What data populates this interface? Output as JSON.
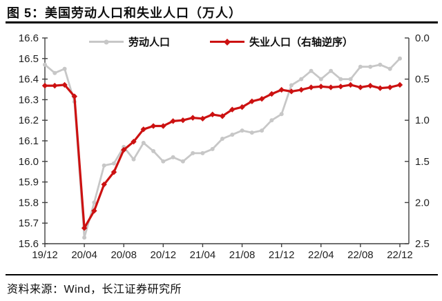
{
  "figure": {
    "title": "图 5：美国劳动人口和失业人口（万人）",
    "source": "资料来源：Wind，长江证券研究所"
  },
  "legend": {
    "labor": "劳动人口",
    "unemployment": "失业人口（右轴逆序）"
  },
  "colors": {
    "labor_series": "#c7c7c7",
    "unemployment_series": "#cc1111",
    "axis": "#3f3f3f",
    "tick_label": "#1f1f1f",
    "rule": "#000000"
  },
  "chart_data": {
    "type": "line",
    "title": "美国劳动人口和失业人口（万人）",
    "x": [
      "19/12",
      "20/01",
      "20/02",
      "20/03",
      "20/04",
      "20/05",
      "20/06",
      "20/07",
      "20/08",
      "20/09",
      "20/10",
      "20/11",
      "20/12",
      "21/01",
      "21/02",
      "21/03",
      "21/04",
      "21/05",
      "21/06",
      "21/07",
      "21/08",
      "21/09",
      "21/10",
      "21/11",
      "21/12",
      "22/01",
      "22/02",
      "22/03",
      "22/04",
      "22/05",
      "22/06",
      "22/07",
      "22/08",
      "22/09",
      "22/10",
      "22/11",
      "22/12"
    ],
    "x_tick_labels": [
      "19/12",
      "20/04",
      "20/08",
      "20/12",
      "21/04",
      "21/08",
      "21/12",
      "22/04",
      "22/08",
      "22/12"
    ],
    "x_tick_step": 4,
    "series": [
      {
        "name": "劳动人口",
        "axis": "left",
        "color": "#c7c7c7",
        "marker": "circle",
        "values": [
          16.47,
          16.43,
          16.45,
          16.29,
          15.63,
          15.8,
          15.98,
          15.99,
          16.07,
          16.01,
          16.09,
          16.05,
          16.0,
          16.02,
          16.0,
          16.04,
          16.04,
          16.06,
          16.11,
          16.13,
          16.15,
          16.14,
          16.15,
          16.2,
          16.23,
          16.37,
          16.4,
          16.44,
          16.4,
          16.44,
          16.4,
          16.4,
          16.46,
          16.46,
          16.47,
          16.45,
          16.5
        ]
      },
      {
        "name": "失业人口（右轴逆序）",
        "axis": "right",
        "color": "#cc1111",
        "marker": "diamond",
        "values": [
          0.58,
          0.58,
          0.57,
          0.71,
          2.31,
          2.1,
          1.78,
          1.63,
          1.36,
          1.26,
          1.11,
          1.07,
          1.07,
          1.01,
          1.0,
          0.97,
          0.98,
          0.93,
          0.95,
          0.87,
          0.84,
          0.77,
          0.74,
          0.68,
          0.63,
          0.65,
          0.63,
          0.6,
          0.59,
          0.6,
          0.59,
          0.57,
          0.6,
          0.58,
          0.61,
          0.6,
          0.57
        ]
      }
    ],
    "left_axis": {
      "min": 15.6,
      "max": 16.6,
      "inverted": false,
      "ticks": [
        "16.6",
        "16.5",
        "16.4",
        "16.3",
        "16.2",
        "16.1",
        "16.0",
        "15.9",
        "15.8",
        "15.7",
        "15.6"
      ]
    },
    "right_axis": {
      "min": 0.0,
      "max": 2.5,
      "inverted": true,
      "ticks": [
        "0.0",
        "0.5",
        "1.0",
        "1.5",
        "2.0",
        "2.5"
      ]
    },
    "grid": false,
    "legend_position": "top-center"
  }
}
